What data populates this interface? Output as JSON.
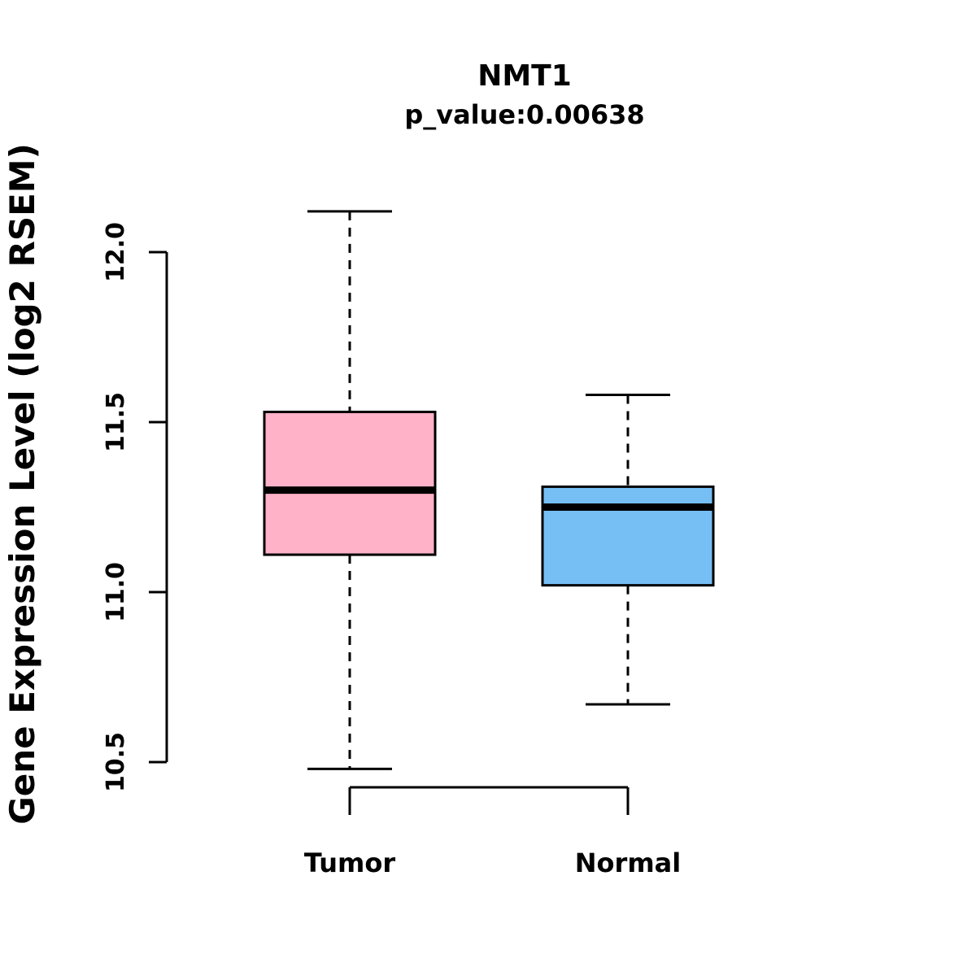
{
  "title": "NMT1",
  "subtitle": "p_value:0.00638",
  "chart_data": {
    "type": "boxplot",
    "title": "NMT1",
    "subtitle": "p_value:0.00638",
    "ylabel": "Gene Expression Level (log2 RSEM)",
    "xlabel": "",
    "ylim": [
      10.35,
      12.2
    ],
    "yticks": [
      10.5,
      11.0,
      11.5,
      12.0
    ],
    "ytick_labels": [
      "10.5",
      "11.0",
      "11.5",
      "12.0"
    ],
    "grid": false,
    "legend": "none",
    "categories": [
      "Tumor",
      "Normal"
    ],
    "series": [
      {
        "name": "Tumor",
        "color": "#FFB2C8",
        "lower_whisker": 10.48,
        "q1": 11.11,
        "median": 11.3,
        "q3": 11.53,
        "upper_whisker": 12.12
      },
      {
        "name": "Normal",
        "color": "#76BFF5",
        "lower_whisker": 10.67,
        "q1": 11.02,
        "median": 11.25,
        "q3": 11.31,
        "upper_whisker": 11.58
      }
    ],
    "colors": {
      "box_stroke": "#000000",
      "axis": "#000000",
      "text": "#000000",
      "background": "#ffffff"
    }
  }
}
